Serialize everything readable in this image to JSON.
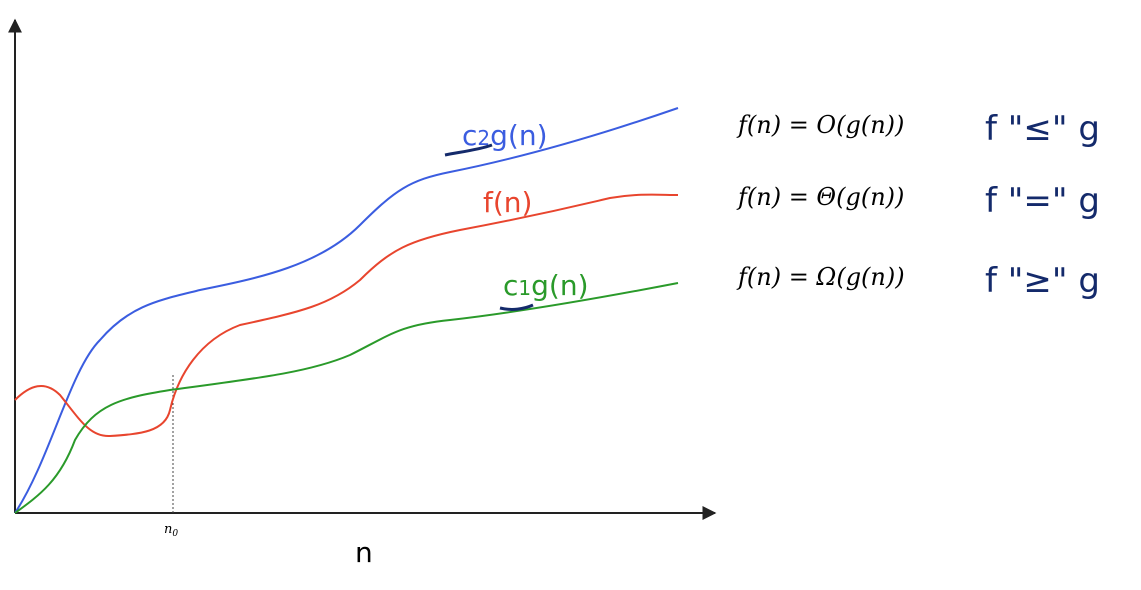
{
  "curves": [
    {
      "letter": "c",
      "subscript": "2",
      "rest": "g(n)"
    },
    {
      "letter": "f(n)"
    },
    {
      "letter": "c",
      "subscript": "1",
      "rest": "g(n)"
    }
  ],
  "axis": {
    "x_label": "n",
    "marker": "n",
    "marker_subscript": "0"
  },
  "formulas": [
    {
      "text": "f(n) = O(g(n))",
      "note": "f \"≤\" g"
    },
    {
      "text": "f(n) = Θ(g(n))",
      "note": "f \"=\" g"
    },
    {
      "text": "f(n) = Ω(g(n))",
      "note": "f \"≥\" g"
    }
  ]
}
